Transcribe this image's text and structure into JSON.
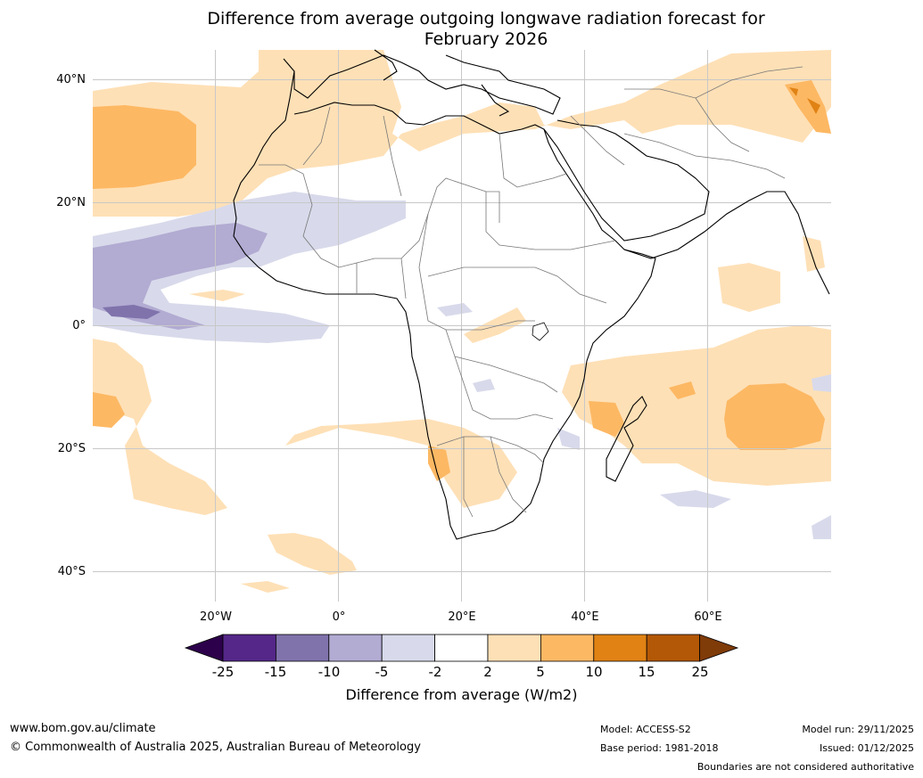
{
  "title": {
    "line1": "Difference from average outgoing longwave radiation forecast for",
    "line2": "February 2026"
  },
  "map": {
    "lat_labels": [
      "40°N",
      "20°N",
      "0°",
      "20°S",
      "40°S"
    ],
    "lon_labels": [
      "20°W",
      "0°",
      "20°E",
      "40°E",
      "60°E"
    ],
    "extent": {
      "lon_min": -40,
      "lon_max": 80,
      "lat_min": -45,
      "lat_max": 45
    }
  },
  "colorbar": {
    "ticks": [
      "-25",
      "-15",
      "-10",
      "-5",
      "-2",
      "2",
      "5",
      "10",
      "15",
      "25"
    ],
    "colors": {
      "below_min": "#2d004b",
      "bins": [
        "#542788",
        "#8073ac",
        "#b2abd2",
        "#d8daeb",
        "#ffffff",
        "#fee0b6",
        "#fdb863",
        "#e08214",
        "#b35806"
      ],
      "above_max": "#7f3b08"
    },
    "label": "Difference from average (W/m2)"
  },
  "footer": {
    "website": "www.bom.gov.au/climate",
    "copyright": "© Commonwealth of Australia 2025, Australian Bureau of Meteorology",
    "model": "Model: ACCESS-S2",
    "base_period": "Base period: 1981-2018",
    "model_run": "Model run: 29/11/2025",
    "issued": "Issued: 01/12/2025",
    "disclaimer": "Boundaries are not considered authoritative"
  }
}
